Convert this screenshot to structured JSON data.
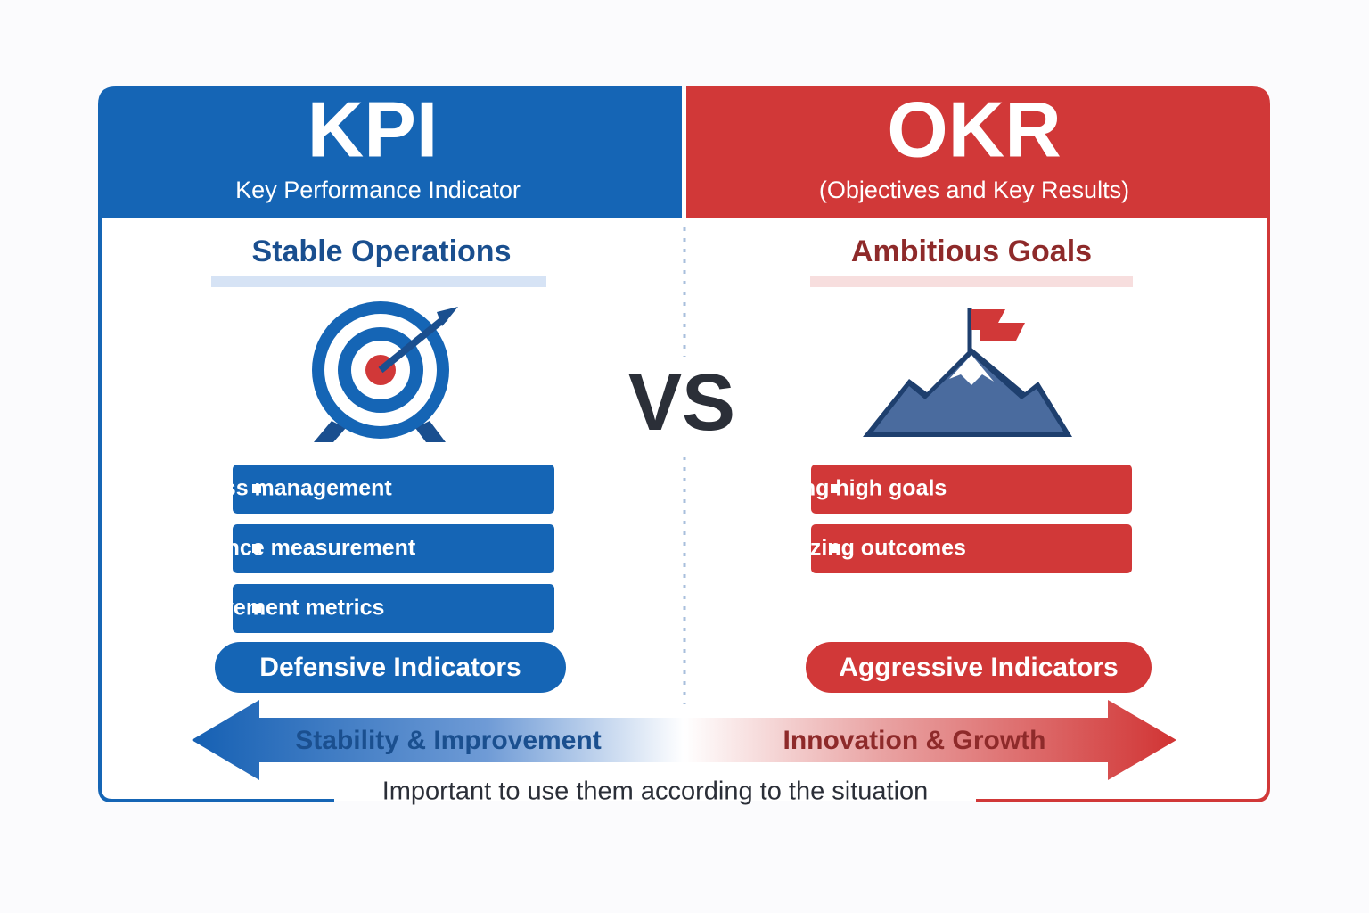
{
  "kpi": {
    "title": "KPI",
    "subtitle": "Key Performance Indicator",
    "heading": "Stable Operations",
    "items": [
      "Progress management",
      "Performance measurement",
      "Improvement metrics"
    ],
    "badge": "Defensive Indicators"
  },
  "okr": {
    "title": "OKR",
    "subtitle": "(Objectives and Key Results)",
    "heading": "Ambitious Goals",
    "items": [
      "Setting high goals",
      "Maximizing outcomes"
    ],
    "badge": "Aggressive Indicators"
  },
  "vs": "VS",
  "arrow": {
    "left": "Stability & Improvement",
    "right": "Innovation & Growth"
  },
  "footer": "Important to use them according to the situation"
}
